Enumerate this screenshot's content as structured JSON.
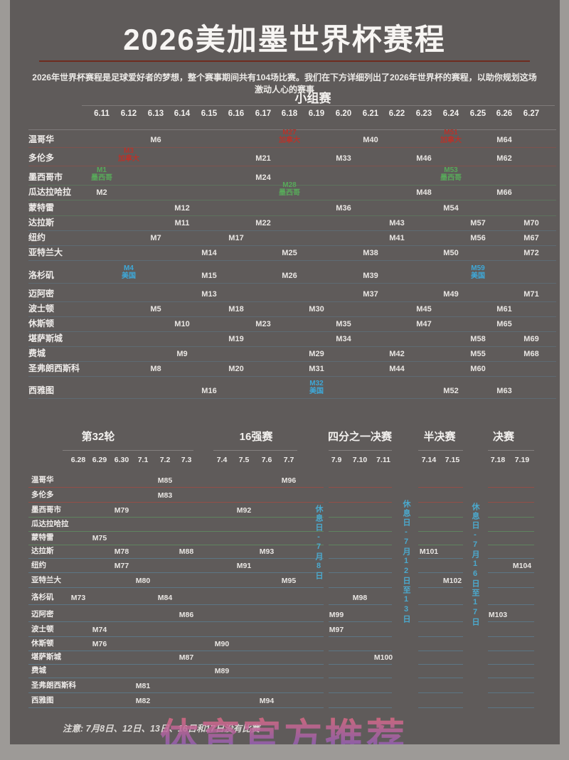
{
  "chart_data": {
    "type": "table",
    "title": "2026美加墨世界杯赛程",
    "subtitle": "2026年世界杯赛程是足球爱好者的梦想，整个赛事期间共有104场比赛。我们在下方详细列出了2026年世界杯的赛程，以助你规划这场激动人心的赛事",
    "note": "注意: 7月8日、12日、13日、16日和17日没有比赛",
    "watermark": "体育官方推荐",
    "country_colors": {
      "ca": "#b5342c",
      "mx": "#58a95a",
      "us": "#3ea8d8"
    },
    "accent_line_color": "#6f2b1f",
    "rest_day_color": "#4ba9cd",
    "cities": [
      {
        "name": "温哥华",
        "country": "ca"
      },
      {
        "name": "多伦多",
        "country": "ca"
      },
      {
        "name": "墨西哥市",
        "country": "mx"
      },
      {
        "name": "瓜达拉哈拉",
        "country": "mx"
      },
      {
        "name": "蒙特雷",
        "country": "mx"
      },
      {
        "name": "达拉斯",
        "country": "us"
      },
      {
        "name": "纽约",
        "country": "us"
      },
      {
        "name": "亚特兰大",
        "country": "us"
      },
      {
        "name": "洛杉矶",
        "country": "us"
      },
      {
        "name": "迈阿密",
        "country": "us"
      },
      {
        "name": "波士顿",
        "country": "us"
      },
      {
        "name": "休斯顿",
        "country": "us"
      },
      {
        "name": "堪萨斯城",
        "country": "us"
      },
      {
        "name": "费城",
        "country": "us"
      },
      {
        "name": "圣弗朗西斯科",
        "country": "us"
      },
      {
        "name": "西雅图",
        "country": "us"
      }
    ],
    "group_stage": {
      "header": "小组赛",
      "dates": [
        "6.11",
        "6.12",
        "6.13",
        "6.14",
        "6.15",
        "6.16",
        "6.17",
        "6.18",
        "6.19",
        "6.20",
        "6.21",
        "6.22",
        "6.23",
        "6.24",
        "6.25",
        "6.26",
        "6.27"
      ],
      "matches": [
        {
          "city": "温哥华",
          "date": "6.13",
          "label": "M6"
        },
        {
          "city": "温哥华",
          "date": "6.18",
          "label": "M27",
          "sub": "加拿大",
          "country": "ca"
        },
        {
          "city": "温哥华",
          "date": "6.21",
          "label": "M40"
        },
        {
          "city": "温哥华",
          "date": "6.24",
          "label": "M51",
          "sub": "加拿大",
          "country": "ca"
        },
        {
          "city": "温哥华",
          "date": "6.26",
          "label": "M64"
        },
        {
          "city": "多伦多",
          "date": "6.12",
          "label": "M3",
          "sub": "加拿大",
          "country": "ca"
        },
        {
          "city": "多伦多",
          "date": "6.17",
          "label": "M21"
        },
        {
          "city": "多伦多",
          "date": "6.20",
          "label": "M33"
        },
        {
          "city": "多伦多",
          "date": "6.23",
          "label": "M46"
        },
        {
          "city": "多伦多",
          "date": "6.26",
          "label": "M62"
        },
        {
          "city": "墨西哥市",
          "date": "6.11",
          "label": "M1",
          "sub": "墨西哥",
          "country": "mx"
        },
        {
          "city": "墨西哥市",
          "date": "6.17",
          "label": "M24"
        },
        {
          "city": "墨西哥市",
          "date": "6.24",
          "label": "M53",
          "sub": "墨西哥",
          "country": "mx"
        },
        {
          "city": "瓜达拉哈拉",
          "date": "6.11",
          "label": "M2"
        },
        {
          "city": "瓜达拉哈拉",
          "date": "6.18",
          "label": "M28",
          "sub": "墨西哥",
          "country": "mx"
        },
        {
          "city": "瓜达拉哈拉",
          "date": "6.23",
          "label": "M48"
        },
        {
          "city": "瓜达拉哈拉",
          "date": "6.26",
          "label": "M66"
        },
        {
          "city": "蒙特雷",
          "date": "6.14",
          "label": "M12"
        },
        {
          "city": "蒙特雷",
          "date": "6.20",
          "label": "M36"
        },
        {
          "city": "蒙特雷",
          "date": "6.24",
          "label": "M54"
        },
        {
          "city": "达拉斯",
          "date": "6.14",
          "label": "M11"
        },
        {
          "city": "达拉斯",
          "date": "6.17",
          "label": "M22"
        },
        {
          "city": "达拉斯",
          "date": "6.22",
          "label": "M43"
        },
        {
          "city": "达拉斯",
          "date": "6.25",
          "label": "M57"
        },
        {
          "city": "达拉斯",
          "date": "6.27",
          "label": "M70"
        },
        {
          "city": "纽约",
          "date": "6.13",
          "label": "M7"
        },
        {
          "city": "纽约",
          "date": "6.16",
          "label": "M17"
        },
        {
          "city": "纽约",
          "date": "6.22",
          "label": "M41"
        },
        {
          "city": "纽约",
          "date": "6.25",
          "label": "M56"
        },
        {
          "city": "纽约",
          "date": "6.27",
          "label": "M67"
        },
        {
          "city": "亚特兰大",
          "date": "6.15",
          "label": "M14"
        },
        {
          "city": "亚特兰大",
          "date": "6.18",
          "label": "M25"
        },
        {
          "city": "亚特兰大",
          "date": "6.21",
          "label": "M38"
        },
        {
          "city": "亚特兰大",
          "date": "6.24",
          "label": "M50"
        },
        {
          "city": "亚特兰大",
          "date": "6.27",
          "label": "M72"
        },
        {
          "city": "洛杉矶",
          "date": "6.12",
          "label": "M4",
          "sub": "美国",
          "country": "us"
        },
        {
          "city": "洛杉矶",
          "date": "6.15",
          "label": "M15"
        },
        {
          "city": "洛杉矶",
          "date": "6.18",
          "label": "M26"
        },
        {
          "city": "洛杉矶",
          "date": "6.21",
          "label": "M39"
        },
        {
          "city": "洛杉矶",
          "date": "6.25",
          "label": "M59",
          "sub": "美国",
          "country": "us"
        },
        {
          "city": "迈阿密",
          "date": "6.15",
          "label": "M13"
        },
        {
          "city": "迈阿密",
          "date": "6.21",
          "label": "M37"
        },
        {
          "city": "迈阿密",
          "date": "6.24",
          "label": "M49"
        },
        {
          "city": "迈阿密",
          "date": "6.27",
          "label": "M71"
        },
        {
          "city": "波士顿",
          "date": "6.13",
          "label": "M5"
        },
        {
          "city": "波士顿",
          "date": "6.16",
          "label": "M18"
        },
        {
          "city": "波士顿",
          "date": "6.19",
          "label": "M30"
        },
        {
          "city": "波士顿",
          "date": "6.23",
          "label": "M45"
        },
        {
          "city": "波士顿",
          "date": "6.26",
          "label": "M61"
        },
        {
          "city": "休斯顿",
          "date": "6.14",
          "label": "M10"
        },
        {
          "city": "休斯顿",
          "date": "6.17",
          "label": "M23"
        },
        {
          "city": "休斯顿",
          "date": "6.20",
          "label": "M35"
        },
        {
          "city": "休斯顿",
          "date": "6.23",
          "label": "M47"
        },
        {
          "city": "休斯顿",
          "date": "6.26",
          "label": "M65"
        },
        {
          "city": "堪萨斯城",
          "date": "6.16",
          "label": "M19"
        },
        {
          "city": "堪萨斯城",
          "date": "6.20",
          "label": "M34"
        },
        {
          "city": "堪萨斯城",
          "date": "6.25",
          "label": "M58"
        },
        {
          "city": "堪萨斯城",
          "date": "6.27",
          "label": "M69"
        },
        {
          "city": "费城",
          "date": "6.14",
          "label": "M9"
        },
        {
          "city": "费城",
          "date": "6.19",
          "label": "M29"
        },
        {
          "city": "费城",
          "date": "6.22",
          "label": "M42"
        },
        {
          "city": "费城",
          "date": "6.25",
          "label": "M55"
        },
        {
          "city": "费城",
          "date": "6.27",
          "label": "M68"
        },
        {
          "city": "圣弗朗西斯科",
          "date": "6.13",
          "label": "M8"
        },
        {
          "city": "圣弗朗西斯科",
          "date": "6.16",
          "label": "M20"
        },
        {
          "city": "圣弗朗西斯科",
          "date": "6.19",
          "label": "M31"
        },
        {
          "city": "圣弗朗西斯科",
          "date": "6.22",
          "label": "M44"
        },
        {
          "city": "圣弗朗西斯科",
          "date": "6.25",
          "label": "M60"
        },
        {
          "city": "西雅图",
          "date": "6.15",
          "label": "M16"
        },
        {
          "city": "西雅图",
          "date": "6.19",
          "label": "M32",
          "sub": "美国",
          "country": "us"
        },
        {
          "city": "西雅图",
          "date": "6.24",
          "label": "M52"
        },
        {
          "city": "西雅图",
          "date": "6.26",
          "label": "M63"
        }
      ]
    },
    "knockout": {
      "sections": [
        {
          "header": "第32轮",
          "dates": [
            "6.28",
            "6.29",
            "6.30",
            "7.1",
            "7.2",
            "7.3"
          ]
        },
        {
          "header": "16强赛",
          "dates": [
            "7.4",
            "7.5",
            "7.6",
            "7.7"
          ]
        },
        {
          "header": "四分之一决赛",
          "dates": [
            "7.9",
            "7.10",
            "7.11"
          ]
        },
        {
          "header": "半决赛",
          "dates": [
            "7.14",
            "7.15"
          ]
        },
        {
          "header": "决赛",
          "dates": [
            "7.18",
            "7.19"
          ]
        }
      ],
      "rest_days": [
        "休息日-7月8日",
        "休息日-7月12日至13日",
        "休息日-7月16日至17日"
      ],
      "matches": [
        {
          "city": "温哥华",
          "date": "7.2",
          "label": "M85"
        },
        {
          "city": "温哥华",
          "date": "7.7",
          "label": "M96"
        },
        {
          "city": "多伦多",
          "date": "7.2",
          "label": "M83"
        },
        {
          "city": "墨西哥市",
          "date": "6.30",
          "label": "M79"
        },
        {
          "city": "墨西哥市",
          "date": "7.5",
          "label": "M92"
        },
        {
          "city": "蒙特雷",
          "date": "6.29",
          "label": "M75"
        },
        {
          "city": "达拉斯",
          "date": "6.30",
          "label": "M78"
        },
        {
          "city": "达拉斯",
          "date": "7.3",
          "label": "M88"
        },
        {
          "city": "达拉斯",
          "date": "7.6",
          "label": "M93"
        },
        {
          "city": "达拉斯",
          "date": "7.14",
          "label": "M101"
        },
        {
          "city": "纽约",
          "date": "6.30",
          "label": "M77"
        },
        {
          "city": "纽约",
          "date": "7.5",
          "label": "M91"
        },
        {
          "city": "纽约",
          "date": "7.19",
          "label": "M104"
        },
        {
          "city": "亚特兰大",
          "date": "7.1",
          "label": "M80"
        },
        {
          "city": "亚特兰大",
          "date": "7.7",
          "label": "M95"
        },
        {
          "city": "亚特兰大",
          "date": "7.15",
          "label": "M102"
        },
        {
          "city": "洛杉矶",
          "date": "6.28",
          "label": "M73"
        },
        {
          "city": "洛杉矶",
          "date": "7.2",
          "label": "M84"
        },
        {
          "city": "洛杉矶",
          "date": "7.10",
          "label": "M98"
        },
        {
          "city": "迈阿密",
          "date": "7.3",
          "label": "M86"
        },
        {
          "city": "迈阿密",
          "date": "7.9",
          "label": "M99"
        },
        {
          "city": "迈阿密",
          "date": "7.18",
          "label": "M103"
        },
        {
          "city": "波士顿",
          "date": "6.29",
          "label": "M74"
        },
        {
          "city": "波士顿",
          "date": "7.9",
          "label": "M97"
        },
        {
          "city": "休斯顿",
          "date": "6.29",
          "label": "M76"
        },
        {
          "city": "休斯顿",
          "date": "7.4",
          "label": "M90"
        },
        {
          "city": "堪萨斯城",
          "date": "7.3",
          "label": "M87"
        },
        {
          "city": "堪萨斯城",
          "date": "7.11",
          "label": "M100"
        },
        {
          "city": "费城",
          "date": "7.4",
          "label": "M89"
        },
        {
          "city": "圣弗朗西斯科",
          "date": "7.1",
          "label": "M81"
        },
        {
          "city": "西雅图",
          "date": "7.1",
          "label": "M82"
        },
        {
          "city": "西雅图",
          "date": "7.6",
          "label": "M94"
        }
      ]
    }
  }
}
